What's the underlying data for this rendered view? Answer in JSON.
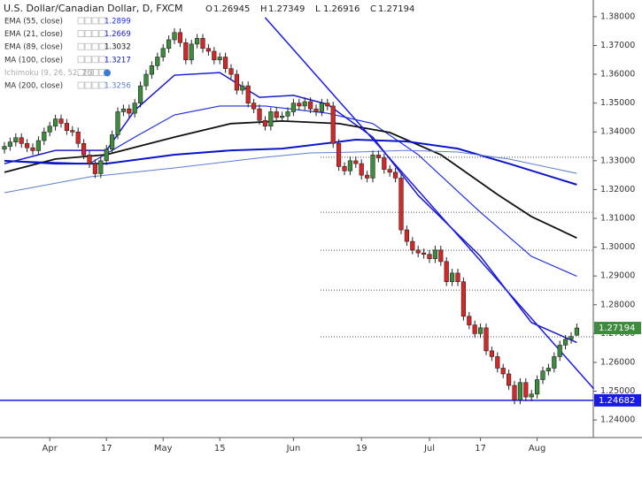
{
  "chart_data": {
    "type": "candlestick",
    "title": "U.S. Dollar/Canadian Dollar, D, FXCM",
    "ohlc_letters": [
      "O",
      "H",
      "L",
      "C"
    ],
    "categories": [
      null,
      null,
      null,
      null,
      null,
      null,
      null,
      null,
      "Apr",
      null,
      null,
      null,
      null,
      null,
      null,
      null,
      null,
      null,
      "17",
      null,
      null,
      null,
      null,
      null,
      null,
      null,
      null,
      null,
      "May",
      null,
      null,
      null,
      null,
      null,
      null,
      null,
      null,
      null,
      "15",
      null,
      null,
      null,
      null,
      null,
      null,
      null,
      null,
      null,
      null,
      null,
      null,
      "Jun",
      null,
      null,
      null,
      null,
      null,
      null,
      null,
      null,
      null,
      null,
      null,
      "19",
      null,
      null,
      null,
      null,
      null,
      null,
      null,
      null,
      null,
      null,
      null,
      "Jul",
      null,
      null,
      null,
      null,
      null,
      null,
      null,
      null,
      "17",
      null,
      null,
      null,
      null,
      null,
      null,
      null,
      null,
      null,
      "Aug",
      null,
      null,
      null,
      null,
      null,
      null,
      null
    ],
    "candles": [
      [
        1.334,
        1.3365,
        1.3325,
        1.335
      ],
      [
        1.335,
        1.338,
        1.3335,
        1.3365
      ],
      [
        1.3365,
        1.3395,
        1.335,
        1.338
      ],
      [
        1.338,
        1.3395,
        1.3345,
        1.336
      ],
      [
        1.336,
        1.3375,
        1.333,
        1.3345
      ],
      [
        1.3345,
        1.336,
        1.332,
        1.3335
      ],
      [
        1.3335,
        1.3385,
        1.332,
        1.337
      ],
      [
        1.337,
        1.3415,
        1.3355,
        1.34
      ],
      [
        1.34,
        1.3435,
        1.3385,
        1.342
      ],
      [
        1.342,
        1.346,
        1.3405,
        1.3445
      ],
      [
        1.3445,
        1.346,
        1.3415,
        1.343
      ],
      [
        1.343,
        1.3445,
        1.339,
        1.3405
      ],
      [
        1.3405,
        1.342,
        1.3385,
        1.34
      ],
      [
        1.34,
        1.3415,
        1.3345,
        1.336
      ],
      [
        1.336,
        1.3375,
        1.3305,
        1.332
      ],
      [
        1.332,
        1.3335,
        1.3275,
        1.329
      ],
      [
        1.329,
        1.3305,
        1.324,
        1.3255
      ],
      [
        1.3255,
        1.3315,
        1.324,
        1.33
      ],
      [
        1.33,
        1.3355,
        1.3285,
        1.334
      ],
      [
        1.334,
        1.3405,
        1.3325,
        1.339
      ],
      [
        1.339,
        1.3485,
        1.3375,
        1.347
      ],
      [
        1.347,
        1.3495,
        1.3455,
        1.348
      ],
      [
        1.348,
        1.3495,
        1.345,
        1.3465
      ],
      [
        1.3465,
        1.3515,
        1.345,
        1.35
      ],
      [
        1.35,
        1.3575,
        1.3485,
        1.356
      ],
      [
        1.356,
        1.3615,
        1.3545,
        1.36
      ],
      [
        1.36,
        1.3645,
        1.3585,
        1.363
      ],
      [
        1.363,
        1.3675,
        1.3615,
        1.366
      ],
      [
        1.366,
        1.3705,
        1.3645,
        1.369
      ],
      [
        1.369,
        1.3735,
        1.3675,
        1.372
      ],
      [
        1.372,
        1.376,
        1.3705,
        1.3745
      ],
      [
        1.3745,
        1.376,
        1.3695,
        1.371
      ],
      [
        1.371,
        1.3725,
        1.3635,
        1.365
      ],
      [
        1.365,
        1.372,
        1.3635,
        1.3705
      ],
      [
        1.3705,
        1.374,
        1.369,
        1.3725
      ],
      [
        1.3725,
        1.374,
        1.3675,
        1.369
      ],
      [
        1.369,
        1.3705,
        1.3665,
        1.368
      ],
      [
        1.368,
        1.3695,
        1.3635,
        1.365
      ],
      [
        1.365,
        1.3675,
        1.3635,
        1.366
      ],
      [
        1.366,
        1.3675,
        1.3605,
        1.362
      ],
      [
        1.362,
        1.3635,
        1.3585,
        1.36
      ],
      [
        1.36,
        1.3615,
        1.353,
        1.3545
      ],
      [
        1.3545,
        1.3575,
        1.353,
        1.356
      ],
      [
        1.356,
        1.3575,
        1.3485,
        1.35
      ],
      [
        1.35,
        1.3515,
        1.3465,
        1.348
      ],
      [
        1.348,
        1.3495,
        1.3425,
        1.344
      ],
      [
        1.344,
        1.3455,
        1.3405,
        1.342
      ],
      [
        1.342,
        1.3485,
        1.3405,
        1.347
      ],
      [
        1.347,
        1.3485,
        1.3435,
        1.345
      ],
      [
        1.345,
        1.347,
        1.3435,
        1.3455
      ],
      [
        1.3455,
        1.3485,
        1.344,
        1.347
      ],
      [
        1.347,
        1.3515,
        1.3455,
        1.35
      ],
      [
        1.35,
        1.3515,
        1.3475,
        1.349
      ],
      [
        1.349,
        1.352,
        1.3475,
        1.3505
      ],
      [
        1.3505,
        1.352,
        1.3465,
        1.348
      ],
      [
        1.348,
        1.3495,
        1.3455,
        1.347
      ],
      [
        1.347,
        1.3515,
        1.3455,
        1.35
      ],
      [
        1.35,
        1.3515,
        1.3475,
        1.349
      ],
      [
        1.349,
        1.3505,
        1.3345,
        1.336
      ],
      [
        1.336,
        1.3375,
        1.3265,
        1.328
      ],
      [
        1.328,
        1.3295,
        1.325,
        1.3265
      ],
      [
        1.3265,
        1.3315,
        1.325,
        1.33
      ],
      [
        1.33,
        1.3315,
        1.3275,
        1.329
      ],
      [
        1.329,
        1.3305,
        1.3235,
        1.325
      ],
      [
        1.325,
        1.3265,
        1.3225,
        1.324
      ],
      [
        1.324,
        1.3335,
        1.3225,
        1.332
      ],
      [
        1.332,
        1.3335,
        1.3295,
        1.331
      ],
      [
        1.331,
        1.3325,
        1.3255,
        1.327
      ],
      [
        1.327,
        1.3285,
        1.3245,
        1.326
      ],
      [
        1.326,
        1.3275,
        1.3225,
        1.324
      ],
      [
        1.324,
        1.3255,
        1.3045,
        1.306
      ],
      [
        1.306,
        1.3075,
        1.3005,
        1.302
      ],
      [
        1.302,
        1.3035,
        1.2975,
        1.299
      ],
      [
        1.299,
        1.3005,
        1.2965,
        1.298
      ],
      [
        1.298,
        1.2995,
        1.296,
        1.2975
      ],
      [
        1.2975,
        1.299,
        1.2945,
        1.296
      ],
      [
        1.296,
        1.3005,
        1.2945,
        1.299
      ],
      [
        1.299,
        1.3005,
        1.2935,
        1.295
      ],
      [
        1.295,
        1.2965,
        1.2865,
        1.288
      ],
      [
        1.288,
        1.2925,
        1.2865,
        1.291
      ],
      [
        1.291,
        1.2925,
        1.2865,
        1.288
      ],
      [
        1.288,
        1.2895,
        1.2745,
        1.276
      ],
      [
        1.276,
        1.2775,
        1.2715,
        1.273
      ],
      [
        1.273,
        1.2745,
        1.2685,
        1.27
      ],
      [
        1.27,
        1.2735,
        1.2685,
        1.272
      ],
      [
        1.272,
        1.2735,
        1.2625,
        1.264
      ],
      [
        1.264,
        1.2655,
        1.2605,
        1.262
      ],
      [
        1.262,
        1.2635,
        1.2565,
        1.258
      ],
      [
        1.258,
        1.2595,
        1.2545,
        1.256
      ],
      [
        1.256,
        1.2575,
        1.2505,
        1.252
      ],
      [
        1.252,
        1.2535,
        1.2455,
        1.247
      ],
      [
        1.247,
        1.2545,
        1.2455,
        1.253
      ],
      [
        1.253,
        1.2545,
        1.2465,
        1.248
      ],
      [
        1.248,
        1.2505,
        1.2465,
        1.249
      ],
      [
        1.249,
        1.2555,
        1.2475,
        1.254
      ],
      [
        1.254,
        1.2585,
        1.2525,
        1.257
      ],
      [
        1.257,
        1.2595,
        1.2555,
        1.258
      ],
      [
        1.258,
        1.2635,
        1.2565,
        1.262
      ],
      [
        1.262,
        1.2675,
        1.2605,
        1.266
      ],
      [
        1.266,
        1.2695,
        1.2645,
        1.268
      ],
      [
        1.268,
        1.2705,
        1.2665,
        1.269
      ],
      [
        1.26945,
        1.27349,
        1.26916,
        1.27194
      ]
    ],
    "up_color": "#3d8b3d",
    "down_color": "#d62728",
    "indicators": [
      {
        "name": "EMA (55, close)",
        "color": "#1f2fe0",
        "width": 1.2,
        "x": [
          0,
          15,
          23,
          30,
          38,
          46,
          57,
          65,
          73,
          84,
          93,
          101
        ],
        "values": [
          1.33,
          1.329,
          1.3382,
          1.3459,
          1.349,
          1.349,
          1.3465,
          1.3429,
          1.3321,
          1.3121,
          1.2968,
          1.2899
        ]
      },
      {
        "name": "EMA (21, close)",
        "color": "#1a1acc",
        "width": 1.5,
        "x": [
          0,
          9,
          18,
          23,
          30,
          38,
          45,
          51,
          57,
          65,
          73,
          84,
          93,
          101
        ],
        "values": [
          1.329,
          1.3336,
          1.3336,
          1.3475,
          1.3597,
          1.3606,
          1.352,
          1.3527,
          1.3496,
          1.3382,
          1.318,
          1.2968,
          1.2738,
          1.2669
        ]
      },
      {
        "name": "EMA (89, close)",
        "color": "#111111",
        "width": 1.8,
        "x": [
          0,
          9,
          18,
          30,
          40,
          49,
          59,
          68,
          77,
          87,
          93,
          101
        ],
        "values": [
          1.326,
          1.3306,
          1.3321,
          1.3382,
          1.3429,
          1.3438,
          1.3429,
          1.3398,
          1.3321,
          1.3183,
          1.3106,
          1.3032
        ]
      },
      {
        "name": "MA (100, close)",
        "color": "#0a14c8",
        "width": 2,
        "x": [
          0,
          9,
          18,
          30,
          40,
          49,
          62,
          71,
          80,
          89,
          101
        ],
        "values": [
          1.33,
          1.329,
          1.329,
          1.3321,
          1.3336,
          1.3342,
          1.3373,
          1.3367,
          1.3342,
          1.329,
          1.3217
        ]
      },
      {
        "name": "MA (200, close)",
        "color": "#5b7fd0",
        "width": 1,
        "x": [
          0,
          15,
          30,
          46,
          54,
          62,
          71,
          80,
          89,
          101
        ],
        "values": [
          1.3189,
          1.3244,
          1.3275,
          1.3312,
          1.3327,
          1.333,
          1.3336,
          1.333,
          1.3306,
          1.3256
        ]
      }
    ],
    "ichimoku_label": "Ichimoku (9, 26, 52, 26)",
    "trendlines": [
      {
        "color": "#1a1ae6",
        "x": [
          46,
          104
        ],
        "values": [
          1.3797,
          1.2508
        ]
      }
    ],
    "levels": [
      1.3312,
      1.3121,
      1.2989,
      1.2851,
      1.2689
    ],
    "hline": {
      "value": 1.24682,
      "color": "#1a1ae6"
    },
    "ylim": [
      1.2339,
      1.3858
    ],
    "yticks": [
      {
        "value": 1.24,
        "label": "1.24000"
      },
      {
        "value": 1.25,
        "label": "1.25000"
      },
      {
        "value": 1.26,
        "label": "1.26000"
      },
      {
        "value": 1.27,
        "label": "1.27000"
      },
      {
        "value": 1.28,
        "label": "1.28000"
      },
      {
        "value": 1.29,
        "label": "1.29000"
      },
      {
        "value": 1.3,
        "label": "1.30000"
      },
      {
        "value": 1.31,
        "label": "1.31000"
      },
      {
        "value": 1.32,
        "label": "1.32000"
      },
      {
        "value": 1.33,
        "label": "1.33000"
      },
      {
        "value": 1.34,
        "label": "1.34000"
      },
      {
        "value": 1.35,
        "label": "1.35000"
      },
      {
        "value": 1.36,
        "label": "1.36000"
      },
      {
        "value": 1.37,
        "label": "1.37000"
      },
      {
        "value": 1.38,
        "label": "1.38000"
      }
    ]
  }
}
